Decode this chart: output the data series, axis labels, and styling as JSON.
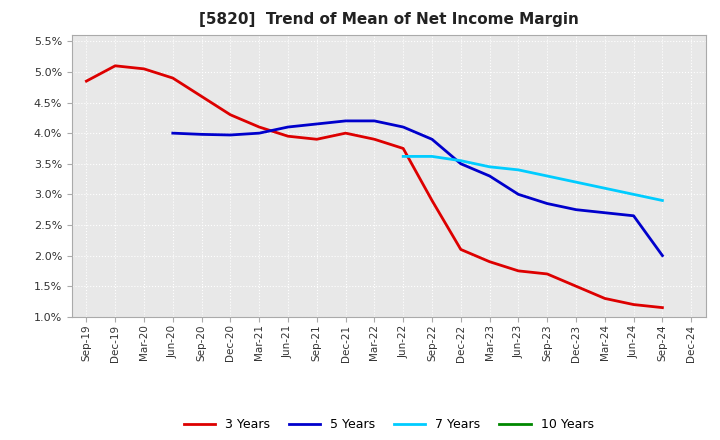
{
  "title": "[5820]  Trend of Mean of Net Income Margin",
  "background_color": "#ffffff",
  "plot_background": "#e8e8e8",
  "grid_color": "#ffffff",
  "grid_style": "dotted",
  "x_labels": [
    "Sep-19",
    "Dec-19",
    "Mar-20",
    "Jun-20",
    "Sep-20",
    "Dec-20",
    "Mar-21",
    "Jun-21",
    "Sep-21",
    "Dec-21",
    "Mar-22",
    "Jun-22",
    "Sep-22",
    "Dec-22",
    "Mar-23",
    "Jun-23",
    "Sep-23",
    "Dec-23",
    "Mar-24",
    "Jun-24",
    "Sep-24",
    "Dec-24"
  ],
  "ylim": [
    0.01,
    0.056
  ],
  "yticks": [
    0.01,
    0.015,
    0.02,
    0.025,
    0.03,
    0.035,
    0.04,
    0.045,
    0.05,
    0.055
  ],
  "series": {
    "3 Years": {
      "color": "#dd0000",
      "linewidth": 2.0,
      "values": [
        0.0485,
        0.051,
        0.0505,
        0.049,
        0.046,
        0.043,
        0.041,
        0.0395,
        0.039,
        0.04,
        0.039,
        0.0375,
        0.029,
        0.021,
        0.019,
        0.0175,
        0.017,
        0.015,
        0.013,
        0.012,
        0.0115,
        null
      ]
    },
    "5 Years": {
      "color": "#0000cc",
      "linewidth": 2.0,
      "values": [
        null,
        null,
        null,
        0.04,
        0.0398,
        0.0397,
        0.04,
        0.041,
        0.0415,
        0.042,
        0.042,
        0.041,
        0.039,
        0.035,
        0.033,
        0.03,
        0.0285,
        0.0275,
        0.027,
        0.0265,
        0.02,
        null
      ]
    },
    "7 Years": {
      "color": "#00ccff",
      "linewidth": 2.0,
      "values": [
        null,
        null,
        null,
        null,
        null,
        null,
        null,
        null,
        null,
        null,
        null,
        0.0362,
        0.0362,
        0.0355,
        0.0345,
        0.034,
        0.033,
        0.032,
        0.031,
        0.03,
        0.029,
        null
      ]
    },
    "10 Years": {
      "color": "#008800",
      "linewidth": 2.0,
      "values": [
        null,
        null,
        null,
        null,
        null,
        null,
        null,
        null,
        null,
        null,
        null,
        null,
        null,
        null,
        null,
        null,
        null,
        null,
        null,
        null,
        null,
        null
      ]
    }
  },
  "legend": {
    "labels": [
      "3 Years",
      "5 Years",
      "7 Years",
      "10 Years"
    ],
    "colors": [
      "#dd0000",
      "#0000cc",
      "#00ccff",
      "#008800"
    ]
  }
}
